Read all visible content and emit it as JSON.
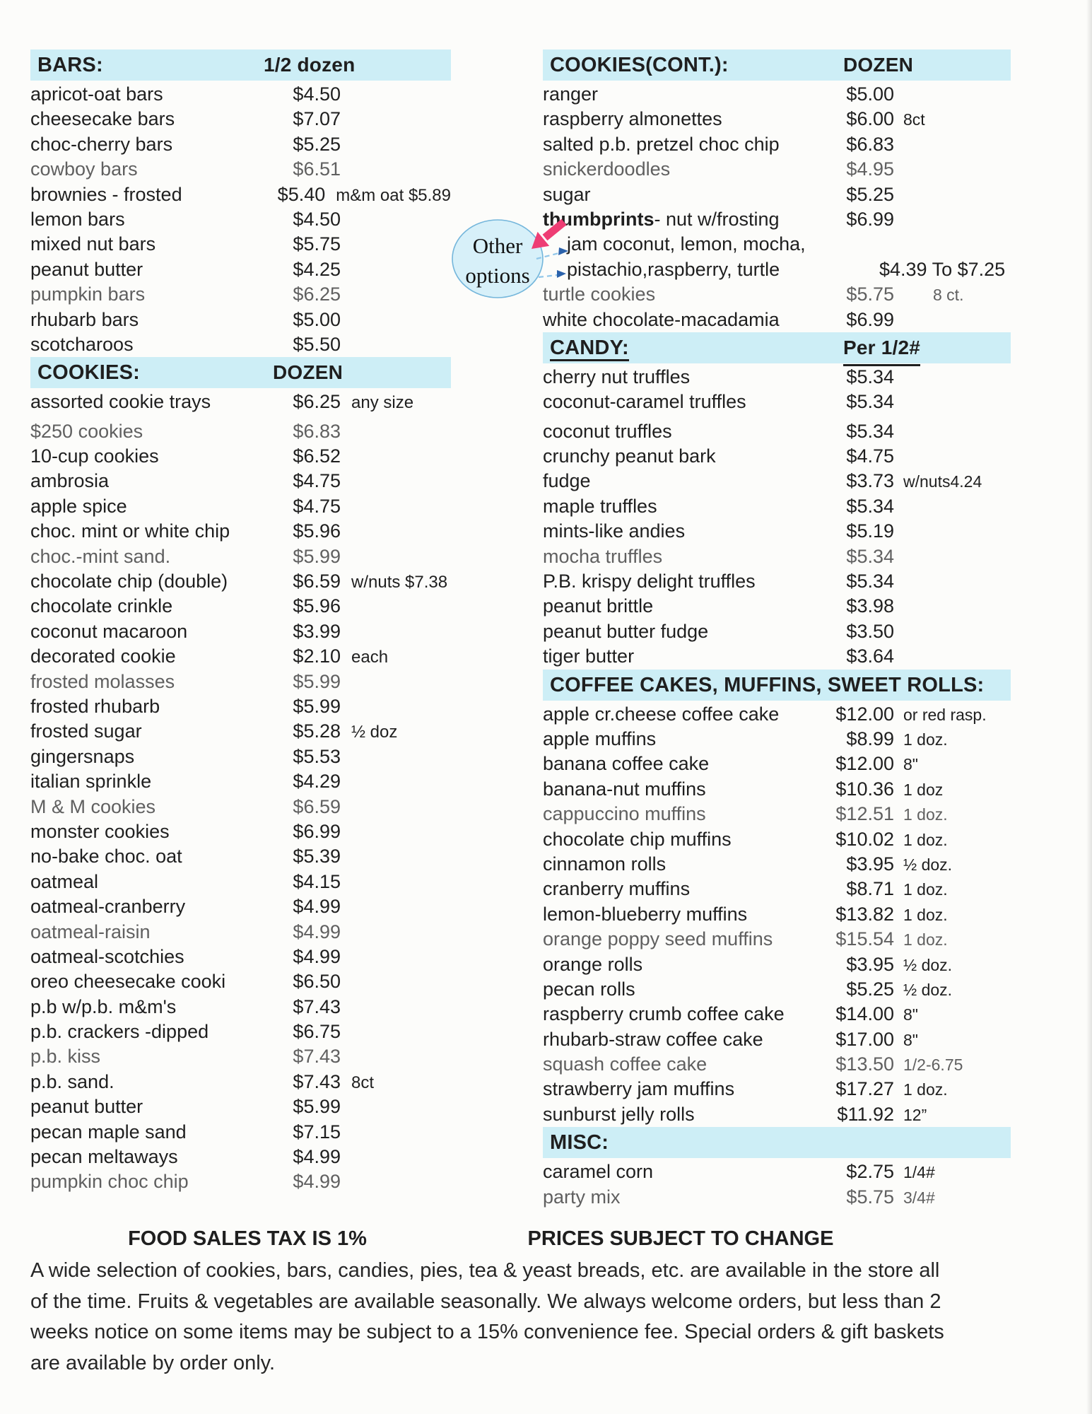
{
  "page": {
    "background": "#fcfcfa",
    "highlight_color": "#cdeef6",
    "text_color": "#1f1f1f",
    "muted_text_color": "#606060"
  },
  "bubble": {
    "line1": "Other",
    "line2": "options",
    "fill": "#d7f0f9",
    "border": "#74b6db",
    "pink_arrow_color": "#ee3d74",
    "blue_arrow_color": "#2b62ab",
    "blue_dash_color": "#90c6e9"
  },
  "sections": {
    "bars": {
      "title": "BARS:",
      "unit": "1/2 dozen",
      "items": [
        {
          "name": "apricot-oat bars",
          "price": "$4.50",
          "note": ""
        },
        {
          "name": "cheesecake bars",
          "price": "$7.07",
          "note": ""
        },
        {
          "name": "choc-cherry bars",
          "price": "$5.25",
          "note": ""
        },
        {
          "name": "cowboy bars",
          "price": "$6.51",
          "note": "",
          "muted": true
        },
        {
          "name": "brownies - frosted",
          "price": "$5.40",
          "note": "m&m oat $5.89"
        },
        {
          "name": "lemon bars",
          "price": "$4.50",
          "note": ""
        },
        {
          "name": "mixed nut bars",
          "price": "$5.75",
          "note": ""
        },
        {
          "name": "peanut butter",
          "price": "$4.25",
          "note": ""
        },
        {
          "name": "pumpkin bars",
          "price": "$6.25",
          "note": "",
          "muted": true
        },
        {
          "name": "rhubarb bars",
          "price": "$5.00",
          "note": ""
        },
        {
          "name": "scotcharoos",
          "price": "$5.50",
          "note": ""
        }
      ]
    },
    "cookies": {
      "title": "COOKIES:",
      "unit": "DOZEN",
      "items": [
        {
          "name": "assorted cookie trays",
          "price": "$6.25",
          "note": "any size",
          "gap": true
        },
        {
          "name": "$250 cookies",
          "price": "$6.83",
          "note": "",
          "muted": true
        },
        {
          "name": "10-cup cookies",
          "price": "$6.52",
          "note": ""
        },
        {
          "name": "ambrosia",
          "price": "$4.75",
          "note": ""
        },
        {
          "name": "apple spice",
          "price": "$4.75",
          "note": ""
        },
        {
          "name": "choc. mint or white chip",
          "price": "$5.96",
          "note": ""
        },
        {
          "name": "choc.-mint sand.",
          "price": "$5.99",
          "note": "",
          "muted": true
        },
        {
          "name": "chocolate chip (double)",
          "price": "$6.59",
          "note": "w/nuts $7.38"
        },
        {
          "name": "chocolate crinkle",
          "price": "$5.96",
          "note": ""
        },
        {
          "name": "coconut macaroon",
          "price": "$3.99",
          "note": ""
        },
        {
          "name": "decorated cookie",
          "price": "$2.10",
          "note": "each"
        },
        {
          "name": "frosted molasses",
          "price": "$5.99",
          "note": "",
          "muted": true
        },
        {
          "name": "frosted rhubarb",
          "price": "$5.99",
          "note": ""
        },
        {
          "name": "frosted sugar",
          "price": "$5.28",
          "note": "½ doz"
        },
        {
          "name": "gingersnaps",
          "price": "$5.53",
          "note": ""
        },
        {
          "name": "italian sprinkle",
          "price": "$4.29",
          "note": ""
        },
        {
          "name": "M & M cookies",
          "price": "$6.59",
          "note": "",
          "muted": true
        },
        {
          "name": "monster cookies",
          "price": "$6.99",
          "note": ""
        },
        {
          "name": "no-bake choc. oat",
          "price": "$5.39",
          "note": ""
        },
        {
          "name": "oatmeal",
          "price": "$4.15",
          "note": ""
        },
        {
          "name": "oatmeal-cranberry",
          "price": "$4.99",
          "note": ""
        },
        {
          "name": "oatmeal-raisin",
          "price": "$4.99",
          "note": "",
          "muted": true
        },
        {
          "name": "oatmeal-scotchies",
          "price": "$4.99",
          "note": ""
        },
        {
          "name": "oreo cheesecake cooki",
          "price": "$6.50",
          "note": ""
        },
        {
          "name": "p.b w/p.b. m&m's",
          "price": "$7.43",
          "note": ""
        },
        {
          "name": "p.b. crackers -dipped",
          "price": "$6.75",
          "note": ""
        },
        {
          "name": "p.b. kiss",
          "price": "$7.43",
          "note": "",
          "muted": true
        },
        {
          "name": "p.b. sand.",
          "price": "$7.43",
          "note": "8ct"
        },
        {
          "name": "peanut butter",
          "price": "$5.99",
          "note": ""
        },
        {
          "name": "pecan maple sand",
          "price": "$7.15",
          "note": ""
        },
        {
          "name": "pecan meltaways",
          "price": "$4.99",
          "note": ""
        },
        {
          "name": "pumpkin choc chip",
          "price": "$4.99",
          "note": "",
          "muted": true
        }
      ]
    },
    "cookies_cont": {
      "title": "COOKIES(CONT.):",
      "unit": "DOZEN",
      "items": [
        {
          "name": "ranger",
          "price": "$5.00",
          "note": ""
        },
        {
          "name": "raspberry almonettes",
          "price": "$6.00",
          "note": "8ct"
        },
        {
          "name": "salted p.b. pretzel choc chip",
          "price": "$6.83",
          "note": ""
        },
        {
          "name": "snickerdoodles",
          "price": "$4.95",
          "note": "",
          "muted": true
        },
        {
          "name": "sugar",
          "price": "$5.25",
          "note": ""
        },
        {
          "name_bold": "thumbprints",
          "name_rest": "- nut w/frosting",
          "price": "$6.99",
          "note": ""
        },
        {
          "name": "jam coconut, lemon, mocha,",
          "price": "",
          "note": "",
          "indent": true
        },
        {
          "name": "pistachio,raspberry, turtle",
          "wide_price": "$4.39 To $7.25",
          "indent": true
        },
        {
          "name": "turtle cookies",
          "price": "$5.75",
          "note": "8 ct.",
          "muted": true,
          "note_indent": true
        },
        {
          "name": "white chocolate-macadamia",
          "price": "$6.99",
          "note": ""
        }
      ]
    },
    "candy": {
      "title": "CANDY:",
      "unit": "Per 1/2#",
      "items": [
        {
          "name": "cherry nut truffles",
          "price": "$5.34",
          "note": ""
        },
        {
          "name": "coconut-caramel truffles",
          "price": "$5.34",
          "note": "",
          "gap": true
        },
        {
          "name": "coconut truffles",
          "price": "$5.34",
          "note": ""
        },
        {
          "name": "crunchy peanut bark",
          "price": "$4.75",
          "note": ""
        },
        {
          "name": "fudge",
          "price": "$3.73",
          "note": "w/nuts4.24"
        },
        {
          "name": "maple truffles",
          "price": "$5.34",
          "note": ""
        },
        {
          "name": "mints-like andies",
          "price": "$5.19",
          "note": ""
        },
        {
          "name": "mocha truffles",
          "price": "$5.34",
          "note": "",
          "muted": true
        },
        {
          "name": "P.B. krispy delight truffles",
          "price": "$5.34",
          "note": ""
        },
        {
          "name": "peanut brittle",
          "price": "$3.98",
          "note": ""
        },
        {
          "name": "peanut butter fudge",
          "price": "$3.50",
          "note": ""
        },
        {
          "name": "tiger butter",
          "price": "$3.64",
          "note": ""
        }
      ]
    },
    "coffee": {
      "title": "COFFEE CAKES, MUFFINS, SWEET ROLLS:",
      "unit": "",
      "items": [
        {
          "name": "apple cr.cheese coffee cake",
          "price": "$12.00",
          "note": "or red rasp."
        },
        {
          "name": "apple muffins",
          "price": "$8.99",
          "note": "1 doz."
        },
        {
          "name": "banana coffee cake",
          "price": "$12.00",
          "note": "8\""
        },
        {
          "name": "banana-nut muffins",
          "price": "$10.36",
          "note": "1 doz"
        },
        {
          "name": "cappuccino muffins",
          "price": "$12.51",
          "note": "1 doz.",
          "muted": true
        },
        {
          "name": "chocolate chip muffins",
          "price": "$10.02",
          "note": "1 doz."
        },
        {
          "name": "cinnamon rolls",
          "price": "$3.95",
          "note": "½ doz."
        },
        {
          "name": "cranberry muffins",
          "price": "$8.71",
          "note": "1 doz."
        },
        {
          "name": "lemon-blueberry muffins",
          "price": "$13.82",
          "note": "1 doz."
        },
        {
          "name": "orange poppy seed muffins",
          "price": "$15.54",
          "note": "1 doz.",
          "muted": true
        },
        {
          "name": "orange rolls",
          "price": "$3.95",
          "note": "½ doz."
        },
        {
          "name": "pecan rolls",
          "price": "$5.25",
          "note": "½ doz."
        },
        {
          "name": "raspberry crumb coffee cake",
          "price": "$14.00",
          "note": "8\""
        },
        {
          "name": "rhubarb-straw coffee cake",
          "price": "$17.00",
          "note": "8\""
        },
        {
          "name": "squash coffee cake",
          "price": "$13.50",
          "note": "1/2-6.75",
          "muted": true
        },
        {
          "name": "strawberry jam muffins",
          "price": "$17.27",
          "note": "1 doz."
        },
        {
          "name": "sunburst jelly rolls",
          "price": "$11.92",
          "note": "12”"
        }
      ]
    },
    "misc": {
      "title": "MISC:",
      "unit": "",
      "items": [
        {
          "name": "caramel corn",
          "price": "$2.75",
          "note": "1/4#"
        },
        {
          "name": "party mix",
          "price": "$5.75",
          "note": "3/4#",
          "muted": true
        }
      ]
    }
  },
  "footer": {
    "tax_note": "FOOD SALES TAX IS 1%",
    "prices_note": "PRICES SUBJECT TO CHANGE",
    "paragraph_lines": [
      "A wide selection of cookies, bars, candies, pies, tea & yeast breads, etc. are available in the store all",
      "of the time.  Fruits & vegetables are available seasonally.  We always welcome orders, but less than 2",
      "weeks notice on some items may be subject to a 15% convenience fee.  Special orders & gift baskets",
      "are available by order only."
    ]
  }
}
